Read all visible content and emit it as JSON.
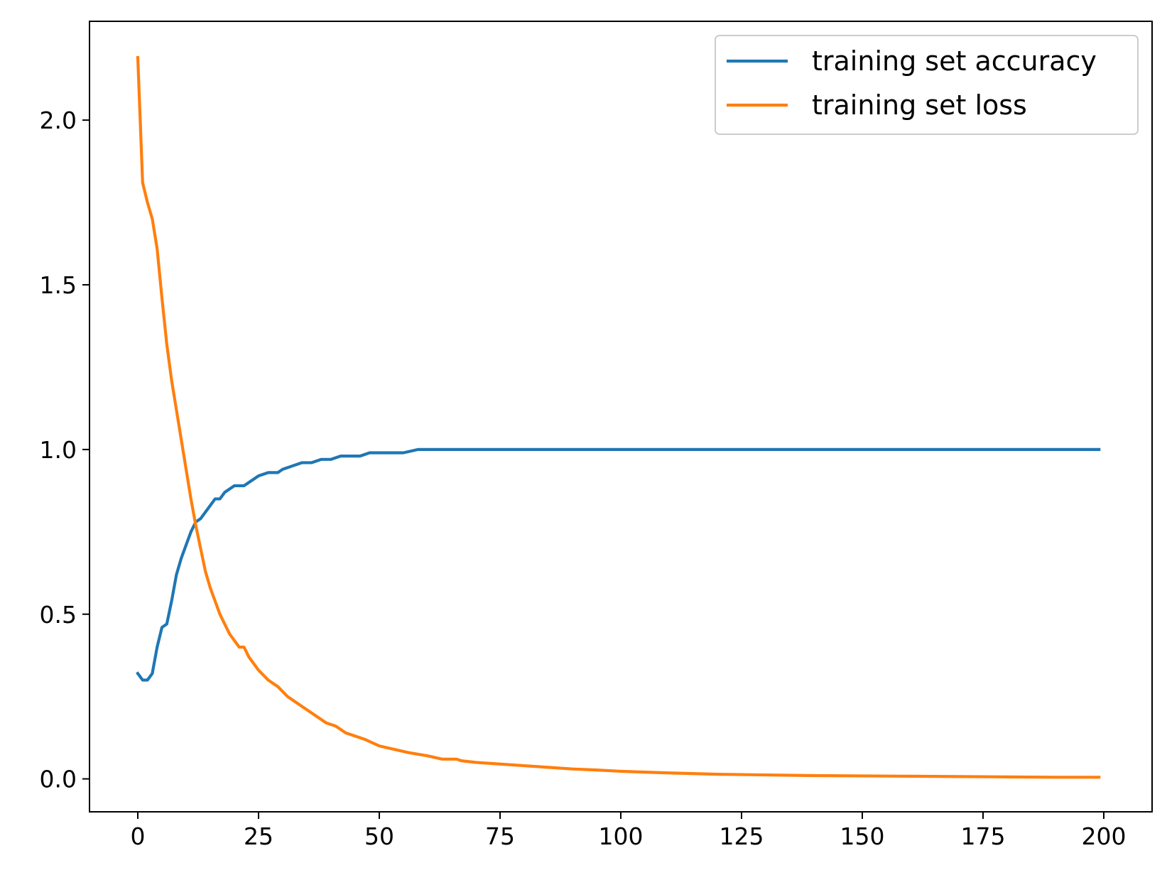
{
  "chart_data": {
    "type": "line",
    "title": "",
    "xlabel": "",
    "ylabel": "",
    "xlim": [
      -10,
      210
    ],
    "ylim": [
      -0.1,
      2.3
    ],
    "xticks": [
      0,
      25,
      50,
      75,
      100,
      125,
      150,
      175,
      200
    ],
    "yticks": [
      0.0,
      0.5,
      1.0,
      1.5,
      2.0
    ],
    "xtick_labels": [
      "0",
      "25",
      "50",
      "75",
      "100",
      "125",
      "150",
      "175",
      "200"
    ],
    "ytick_labels": [
      "0.0",
      "0.5",
      "1.0",
      "1.5",
      "2.0"
    ],
    "grid": false,
    "legend_position": "top-right",
    "series": [
      {
        "name": "training set accuracy",
        "color": "#1f77b4",
        "points": [
          [
            0,
            0.32
          ],
          [
            1,
            0.3
          ],
          [
            2,
            0.3
          ],
          [
            3,
            0.32
          ],
          [
            4,
            0.4
          ],
          [
            5,
            0.46
          ],
          [
            6,
            0.47
          ],
          [
            7,
            0.54
          ],
          [
            8,
            0.62
          ],
          [
            9,
            0.67
          ],
          [
            10,
            0.71
          ],
          [
            11,
            0.75
          ],
          [
            12,
            0.78
          ],
          [
            13,
            0.79
          ],
          [
            14,
            0.81
          ],
          [
            15,
            0.83
          ],
          [
            16,
            0.85
          ],
          [
            17,
            0.85
          ],
          [
            18,
            0.87
          ],
          [
            19,
            0.88
          ],
          [
            20,
            0.89
          ],
          [
            22,
            0.89
          ],
          [
            23,
            0.9
          ],
          [
            25,
            0.92
          ],
          [
            27,
            0.93
          ],
          [
            29,
            0.93
          ],
          [
            30,
            0.94
          ],
          [
            32,
            0.95
          ],
          [
            34,
            0.96
          ],
          [
            36,
            0.96
          ],
          [
            38,
            0.97
          ],
          [
            40,
            0.97
          ],
          [
            42,
            0.98
          ],
          [
            44,
            0.98
          ],
          [
            46,
            0.98
          ],
          [
            48,
            0.99
          ],
          [
            50,
            0.99
          ],
          [
            52,
            0.99
          ],
          [
            55,
            0.99
          ],
          [
            58,
            1.0
          ],
          [
            60,
            1.0
          ],
          [
            70,
            1.0
          ],
          [
            80,
            1.0
          ],
          [
            90,
            1.0
          ],
          [
            100,
            1.0
          ],
          [
            110,
            1.0
          ],
          [
            120,
            1.0
          ],
          [
            130,
            1.0
          ],
          [
            140,
            1.0
          ],
          [
            150,
            1.0
          ],
          [
            160,
            1.0
          ],
          [
            170,
            1.0
          ],
          [
            180,
            1.0
          ],
          [
            190,
            1.0
          ],
          [
            199,
            1.0
          ]
        ]
      },
      {
        "name": "training set loss",
        "color": "#ff7f0e",
        "points": [
          [
            0,
            2.19
          ],
          [
            1,
            1.81
          ],
          [
            2,
            1.75
          ],
          [
            3,
            1.7
          ],
          [
            4,
            1.61
          ],
          [
            5,
            1.46
          ],
          [
            6,
            1.32
          ],
          [
            7,
            1.21
          ],
          [
            8,
            1.12
          ],
          [
            9,
            1.03
          ],
          [
            10,
            0.94
          ],
          [
            11,
            0.85
          ],
          [
            12,
            0.77
          ],
          [
            13,
            0.7
          ],
          [
            14,
            0.63
          ],
          [
            15,
            0.58
          ],
          [
            16,
            0.54
          ],
          [
            17,
            0.5
          ],
          [
            18,
            0.47
          ],
          [
            19,
            0.44
          ],
          [
            20,
            0.42
          ],
          [
            21,
            0.4
          ],
          [
            22,
            0.4
          ],
          [
            23,
            0.37
          ],
          [
            25,
            0.33
          ],
          [
            27,
            0.3
          ],
          [
            29,
            0.28
          ],
          [
            31,
            0.25
          ],
          [
            33,
            0.23
          ],
          [
            35,
            0.21
          ],
          [
            37,
            0.19
          ],
          [
            39,
            0.17
          ],
          [
            41,
            0.16
          ],
          [
            43,
            0.14
          ],
          [
            45,
            0.13
          ],
          [
            47,
            0.12
          ],
          [
            50,
            0.1
          ],
          [
            53,
            0.09
          ],
          [
            56,
            0.08
          ],
          [
            60,
            0.07
          ],
          [
            63,
            0.06
          ],
          [
            66,
            0.06
          ],
          [
            67,
            0.055
          ],
          [
            70,
            0.05
          ],
          [
            75,
            0.045
          ],
          [
            80,
            0.04
          ],
          [
            85,
            0.035
          ],
          [
            90,
            0.03
          ],
          [
            95,
            0.027
          ],
          [
            100,
            0.023
          ],
          [
            110,
            0.018
          ],
          [
            120,
            0.014
          ],
          [
            130,
            0.012
          ],
          [
            140,
            0.01
          ],
          [
            150,
            0.009
          ],
          [
            160,
            0.008
          ],
          [
            170,
            0.007
          ],
          [
            180,
            0.006
          ],
          [
            190,
            0.005
          ],
          [
            199,
            0.005
          ]
        ]
      }
    ]
  }
}
